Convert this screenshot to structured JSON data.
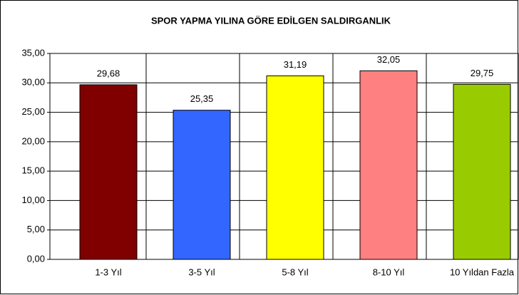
{
  "chart_data": {
    "type": "bar",
    "title": "SPOR YAPMA YILINA GÖRE EDİLGEN SALDIRGANLIK",
    "categories": [
      "1-3 Yıl",
      "3-5 Yıl",
      "5-8 Yıl",
      "8-10 Yıl",
      "10 Yıldan Fazla"
    ],
    "values": [
      29.68,
      25.35,
      31.19,
      32.05,
      29.75
    ],
    "value_labels": [
      "29,68",
      "25,35",
      "31,19",
      "32,05",
      "29,75"
    ],
    "colors": [
      "#800000",
      "#3366ff",
      "#ffff00",
      "#ff8080",
      "#99cc00"
    ],
    "ylim": [
      0,
      35
    ],
    "yticks": [
      {
        "value": 0,
        "label": "0,00"
      },
      {
        "value": 5,
        "label": "5,00"
      },
      {
        "value": 10,
        "label": "10,00"
      },
      {
        "value": 15,
        "label": "15,00"
      },
      {
        "value": 20,
        "label": "20,00"
      },
      {
        "value": 25,
        "label": "25,00"
      },
      {
        "value": 30,
        "label": "30,00"
      },
      {
        "value": 35,
        "label": "35,00"
      }
    ],
    "grid": true
  }
}
